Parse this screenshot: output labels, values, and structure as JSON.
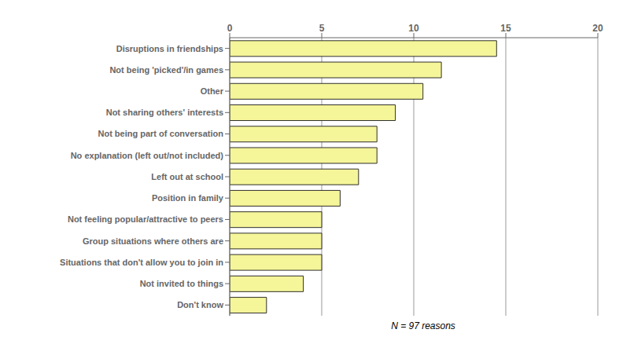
{
  "chart_data": {
    "type": "bar",
    "orientation": "horizontal",
    "categories": [
      "Don't know",
      "Not invited to things",
      "Situations that don't allow you to join in",
      "Group situations where others are",
      "Not feeling popular/attractive to peers",
      "Position in family",
      "Left out at school",
      "No explanation (left out/not included)",
      "Not being part of conversation",
      "Not sharing others' interests",
      "Other",
      "Not being 'picked'/in games",
      "Disruptions in friendships"
    ],
    "values": [
      2,
      4,
      5,
      5,
      5,
      6,
      7,
      8,
      8,
      9,
      10.5,
      11.5,
      14.5
    ],
    "color": "#f5f59a",
    "xlabel": "N = 97 reasons",
    "xlim": [
      0,
      20
    ],
    "xticks": [
      0,
      5,
      10,
      15,
      20
    ],
    "grid": true
  }
}
